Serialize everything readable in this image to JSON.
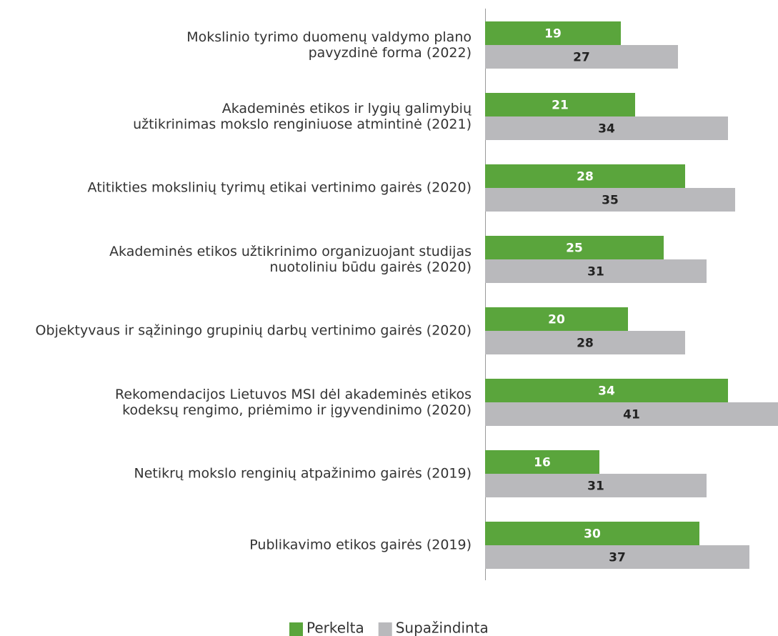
{
  "chart_data": {
    "type": "bar",
    "orientation": "horizontal",
    "categories": [
      "Mokslinio tyrimo duomenų valdymo plano\npavyzdinė forma (2022)",
      "Akademinės etikos ir lygių galimybių\nužtikrinimas mokslo renginiuose atmintinė (2021)",
      "Atitikties mokslinių tyrimų etikai vertinimo gairės (2020)",
      "Akademinės etikos užtikrinimo organizuojant studijas\nnuotoliniu būdu gairės (2020)",
      "Objektyvaus ir sąžiningo grupinių darbų vertinimo gairės (2020)",
      "Rekomendacijos Lietuvos MSI dėl akademinės etikos\nkodeksų rengimo, priėmimo ir įgyvendinimo (2020)",
      "Netikrų mokslo renginių atpažinimo gairės (2019)",
      "Publikavimo etikos gairės (2019)"
    ],
    "series": [
      {
        "name": "Perkelta",
        "color": "#5aa53c",
        "label_color": "#ffffff",
        "values": [
          19,
          21,
          28,
          25,
          20,
          34,
          16,
          30
        ]
      },
      {
        "name": "Supažindinta",
        "color": "#b9b9bc",
        "label_color": "#222222",
        "values": [
          27,
          34,
          35,
          31,
          28,
          41,
          31,
          37
        ]
      }
    ],
    "xlim": [
      0,
      41
    ],
    "legend": "bottom"
  }
}
